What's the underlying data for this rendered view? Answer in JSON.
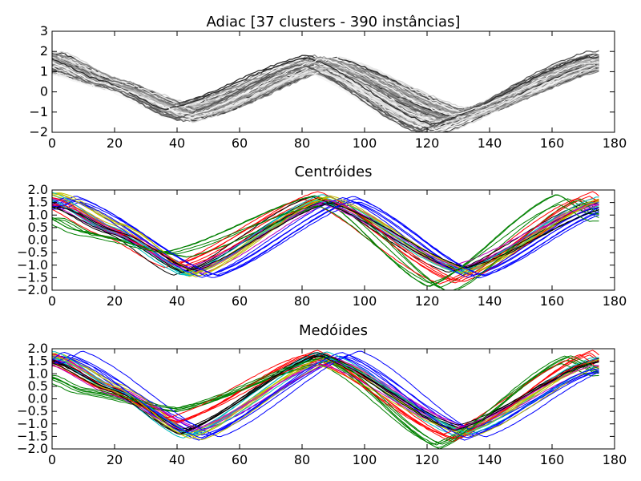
{
  "chart_data": [
    {
      "type": "line",
      "title": "Adiac [37 clusters - 390 instâncias]",
      "xlim": [
        0,
        180
      ],
      "ylim": [
        -2,
        3
      ],
      "xticks": [
        0,
        20,
        40,
        60,
        80,
        100,
        120,
        140,
        160,
        180
      ],
      "yticks": [
        -2,
        -1,
        0,
        1,
        2,
        3
      ],
      "xtick_labels": [
        "0",
        "20",
        "40",
        "60",
        "80",
        "100",
        "120",
        "140",
        "160",
        "180"
      ],
      "ytick_labels": [
        "−2",
        "−1",
        "0",
        "1",
        "2",
        "3"
      ],
      "grid": false,
      "n_series_shown": 390,
      "series_colors": [
        "#2b2b2b",
        "#3c3c3c",
        "#555555",
        "#6e6e6e",
        "#888888",
        "#a2a2a2",
        "#bcbcbc",
        "#d4d4d4",
        "#e8e8e8",
        "#f5f5f5"
      ],
      "series": [
        {
          "x": [
            0,
            20,
            45,
            87,
            130,
            175
          ],
          "values": [
            1.9,
            0.3,
            -1.2,
            1.5,
            -1.3,
            1.5
          ]
        },
        {
          "x": [
            0,
            20,
            40,
            85,
            125,
            175
          ],
          "values": [
            1.7,
            0.5,
            -0.8,
            1.6,
            -1.5,
            1.6
          ]
        },
        {
          "x": [
            0,
            20,
            42,
            83,
            120,
            175
          ],
          "values": [
            1.1,
            0.2,
            -1.3,
            1.2,
            -1.9,
            1.8
          ]
        },
        {
          "x": [
            0,
            20,
            48,
            90,
            132,
            175
          ],
          "values": [
            1.6,
            0.4,
            -1.1,
            1.6,
            -1.1,
            1.4
          ]
        }
      ]
    },
    {
      "type": "line",
      "title": "Centróides",
      "xlim": [
        0,
        180
      ],
      "ylim": [
        -2,
        2
      ],
      "xticks": [
        0,
        20,
        40,
        60,
        80,
        100,
        120,
        140,
        160,
        180
      ],
      "yticks": [
        -2,
        -1.5,
        -1,
        -0.5,
        0,
        0.5,
        1,
        1.5,
        2
      ],
      "xtick_labels": [
        "0",
        "20",
        "40",
        "60",
        "80",
        "100",
        "120",
        "140",
        "160",
        "180"
      ],
      "ytick_labels": [
        "−2.0",
        "−1.5",
        "−1.0",
        "−0.5",
        "0.0",
        "0.5",
        "1.0",
        "1.5",
        "2.0"
      ],
      "grid": false,
      "n_series_shown": 37,
      "series_colors": [
        "#0000ff",
        "#008000",
        "#ff0000",
        "#00bfbf",
        "#bf00bf",
        "#bfbf00",
        "#000000"
      ],
      "series": [
        {
          "x": [
            0,
            6,
            50,
            95,
            135,
            175
          ],
          "values": [
            1.3,
            1.6,
            -1.4,
            1.6,
            -1.4,
            1.2
          ]
        },
        {
          "x": [
            0,
            10,
            40,
            88,
            124,
            165,
            175
          ],
          "values": [
            0.9,
            0.3,
            -0.55,
            1.6,
            -1.9,
            1.65,
            0.9
          ]
        },
        {
          "x": [
            0,
            20,
            40,
            84,
            128,
            172,
            175
          ],
          "values": [
            1.5,
            0.3,
            -0.95,
            1.75,
            -1.6,
            1.75,
            1.5
          ]
        },
        {
          "x": [
            0,
            20,
            44,
            87,
            132,
            175
          ],
          "values": [
            1.8,
            0.4,
            -1.4,
            1.7,
            -1.3,
            1.6
          ]
        },
        {
          "x": [
            0,
            20,
            45,
            88,
            130,
            175
          ],
          "values": [
            1.6,
            0.3,
            -1.3,
            1.55,
            -1.2,
            1.5
          ]
        },
        {
          "x": [
            0,
            20,
            44,
            86,
            131,
            175
          ],
          "values": [
            1.7,
            0.5,
            -1.45,
            1.6,
            -1.35,
            1.55
          ]
        },
        {
          "x": [
            0,
            20,
            42,
            86,
            130,
            175
          ],
          "values": [
            1.5,
            0.35,
            -1.25,
            1.7,
            -1.15,
            1.5
          ]
        }
      ]
    },
    {
      "type": "line",
      "title": "Medóides",
      "xlim": [
        0,
        180
      ],
      "ylim": [
        -2,
        2
      ],
      "xticks": [
        0,
        20,
        40,
        60,
        80,
        100,
        120,
        140,
        160,
        180
      ],
      "yticks": [
        -2,
        -1.5,
        -1,
        -0.5,
        0,
        0.5,
        1,
        1.5,
        2
      ],
      "xtick_labels": [
        "0",
        "20",
        "40",
        "60",
        "80",
        "100",
        "120",
        "140",
        "160",
        "180"
      ],
      "ytick_labels": [
        "−2.0",
        "−1.5",
        "−1.0",
        "−0.5",
        "0.0",
        "0.5",
        "1.0",
        "1.5",
        "2.0"
      ],
      "grid": false,
      "n_series_shown": 37,
      "series_colors": [
        "#0000ff",
        "#008000",
        "#ff0000",
        "#00bfbf",
        "#bf00bf",
        "#bfbf00",
        "#000000"
      ],
      "series": [
        {
          "x": [
            0,
            6,
            50,
            95,
            135,
            175
          ],
          "values": [
            1.3,
            1.75,
            -1.45,
            1.75,
            -1.45,
            1.1
          ]
        },
        {
          "x": [
            0,
            10,
            40,
            88,
            124,
            165,
            175
          ],
          "values": [
            0.85,
            0.3,
            -0.5,
            1.6,
            -2.0,
            1.65,
            1.1
          ]
        },
        {
          "x": [
            0,
            20,
            40,
            84,
            128,
            172,
            175
          ],
          "values": [
            1.6,
            0.3,
            -0.9,
            1.75,
            -1.6,
            1.75,
            1.5
          ]
        },
        {
          "x": [
            0,
            20,
            44,
            87,
            132,
            175
          ],
          "values": [
            1.8,
            0.4,
            -1.45,
            1.8,
            -1.4,
            1.6
          ]
        },
        {
          "x": [
            0,
            20,
            45,
            88,
            130,
            175
          ],
          "values": [
            1.6,
            0.3,
            -1.3,
            1.55,
            -1.2,
            1.5
          ]
        },
        {
          "x": [
            0,
            20,
            44,
            86,
            131,
            175
          ],
          "values": [
            1.7,
            0.5,
            -1.5,
            1.6,
            -1.35,
            1.55
          ]
        },
        {
          "x": [
            0,
            20,
            42,
            86,
            130,
            175
          ],
          "values": [
            1.5,
            0.35,
            -1.3,
            1.75,
            -1.15,
            1.5
          ]
        }
      ]
    }
  ]
}
